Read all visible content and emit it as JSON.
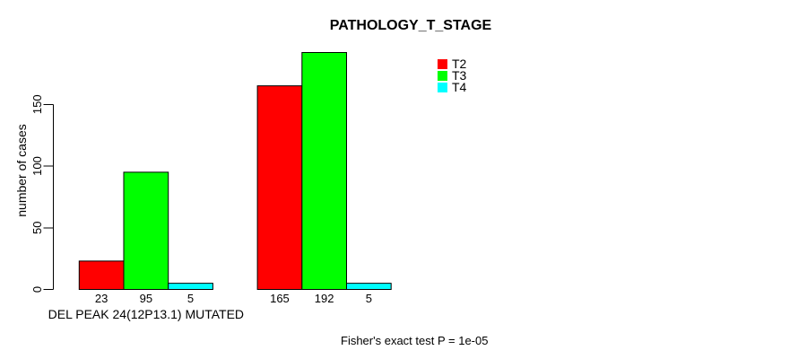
{
  "chart_data": {
    "type": "bar",
    "title": "PATHOLOGY_T_STAGE",
    "ylabel": "number of cases",
    "xlabel": "",
    "annotation": "Fisher's exact test P = 1e-05",
    "yticks": [
      0,
      50,
      100,
      150
    ],
    "ylim": [
      0,
      200
    ],
    "grid": false,
    "legend_position": "top-right",
    "background": "#ffffff",
    "axis_color": "#000000",
    "bar_border_color": "#000000",
    "categories": [
      "DEL PEAK 24(12P13.1) MUTATED",
      ""
    ],
    "series": [
      {
        "name": "T2",
        "color": "#ff0000",
        "values": [
          23,
          165
        ]
      },
      {
        "name": "T3",
        "color": "#00ff00",
        "values": [
          95,
          192
        ]
      },
      {
        "name": "T4",
        "color": "#00ffff",
        "values": [
          5,
          5
        ]
      }
    ],
    "bar_value_labels": [
      [
        23,
        95,
        5
      ],
      [
        165,
        192,
        5
      ]
    ]
  }
}
